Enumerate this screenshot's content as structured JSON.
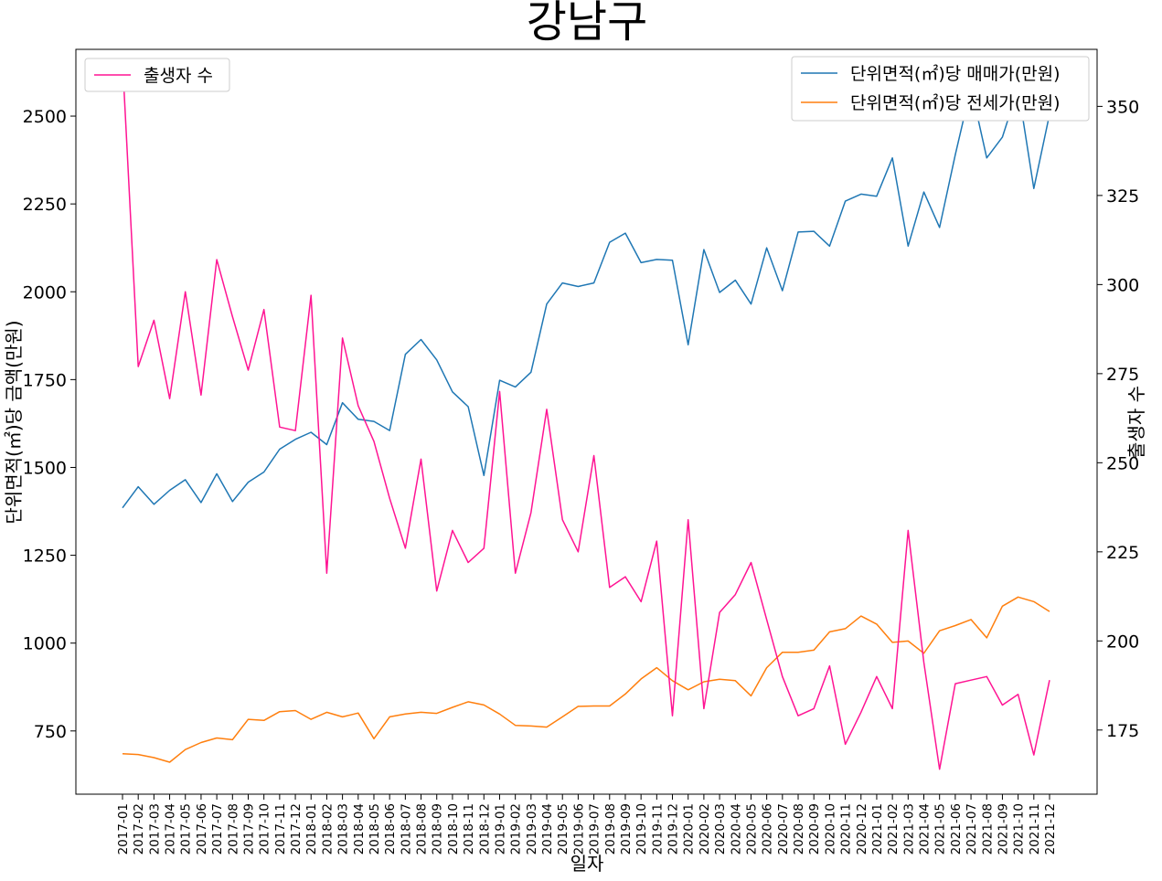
{
  "chart_data": {
    "type": "line",
    "title": "강남구",
    "xlabel": "일자",
    "ylabel_left": "단위면적(㎡)당 금액(만원)",
    "ylabel_right": "출생자 수",
    "x": [
      "2017-01",
      "2017-02",
      "2017-03",
      "2017-04",
      "2017-05",
      "2017-06",
      "2017-07",
      "2017-08",
      "2017-09",
      "2017-10",
      "2017-11",
      "2017-12",
      "2018-01",
      "2018-02",
      "2018-03",
      "2018-04",
      "2018-05",
      "2018-06",
      "2018-07",
      "2018-08",
      "2018-09",
      "2018-10",
      "2018-11",
      "2018-12",
      "2019-01",
      "2019-02",
      "2019-03",
      "2019-04",
      "2019-05",
      "2019-06",
      "2019-07",
      "2019-08",
      "2019-09",
      "2019-10",
      "2019-11",
      "2019-12",
      "2020-01",
      "2020-02",
      "2020-03",
      "2020-04",
      "2020-05",
      "2020-06",
      "2020-07",
      "2020-08",
      "2020-09",
      "2020-10",
      "2020-11",
      "2020-12",
      "2021-01",
      "2021-02",
      "2021-03",
      "2021-04",
      "2021-05",
      "2021-06",
      "2021-07",
      "2021-08",
      "2021-09",
      "2021-10",
      "2021-11",
      "2021-12"
    ],
    "ylim_left": [
      570,
      2690
    ],
    "yticks_left": [
      750,
      1000,
      1250,
      1500,
      1750,
      2000,
      2250,
      2500
    ],
    "ylim_right": [
      157,
      366
    ],
    "yticks_right": [
      175,
      200,
      225,
      250,
      275,
      300,
      325,
      350
    ],
    "legend_left": "top-left",
    "legend_right": "top-right",
    "grid": false,
    "series": [
      {
        "name": "단위면적(㎡)당 매매가(만원)",
        "axis": "left",
        "color": "#1f77b4",
        "values": [
          1385,
          1445,
          1395,
          1435,
          1465,
          1400,
          1482,
          1403,
          1458,
          1487,
          1552,
          1580,
          1600,
          1565,
          1684,
          1637,
          1631,
          1605,
          1822,
          1864,
          1806,
          1715,
          1673,
          1477,
          1748,
          1729,
          1771,
          1965,
          2025,
          2015,
          2025,
          2141,
          2167,
          2083,
          2092,
          2090,
          1849,
          2120,
          1998,
          2033,
          1965,
          2125,
          2003,
          2170,
          2172,
          2130,
          2258,
          2278,
          2272,
          2381,
          2130,
          2284,
          2183,
          2390,
          2582,
          2381,
          2440,
          2580,
          2294,
          2505
        ]
      },
      {
        "name": "단위면적(㎡)당 전세가(만원)",
        "axis": "left",
        "color": "#ff7f0e",
        "values": [
          685,
          683,
          674,
          661,
          697,
          717,
          730,
          725,
          783,
          780,
          805,
          808,
          783,
          803,
          790,
          801,
          728,
          790,
          798,
          803,
          800,
          817,
          833,
          824,
          798,
          766,
          764,
          761,
          790,
          820,
          821,
          821,
          855,
          898,
          930,
          893,
          867,
          890,
          897,
          893,
          850,
          930,
          974,
          974,
          980,
          1032,
          1041,
          1077,
          1054,
          1002,
          1006,
          971,
          1035,
          1050,
          1067,
          1015,
          1105,
          1131,
          1118,
          1090
        ]
      },
      {
        "name": "출생자 수",
        "axis": "right",
        "color": "#ff1493",
        "values": [
          363,
          277,
          290,
          268,
          298,
          269,
          307,
          291,
          276,
          293,
          260,
          259,
          297,
          219,
          285,
          266,
          256,
          240,
          226,
          251,
          214,
          231,
          222,
          226,
          270,
          219,
          236,
          265,
          234,
          225,
          252,
          215,
          218,
          211,
          228,
          179,
          234,
          181,
          208,
          213,
          222,
          206,
          190,
          179,
          181,
          193,
          171,
          180,
          190,
          181,
          231,
          194,
          164,
          188,
          189,
          190,
          182,
          185,
          168,
          189
        ]
      }
    ]
  }
}
